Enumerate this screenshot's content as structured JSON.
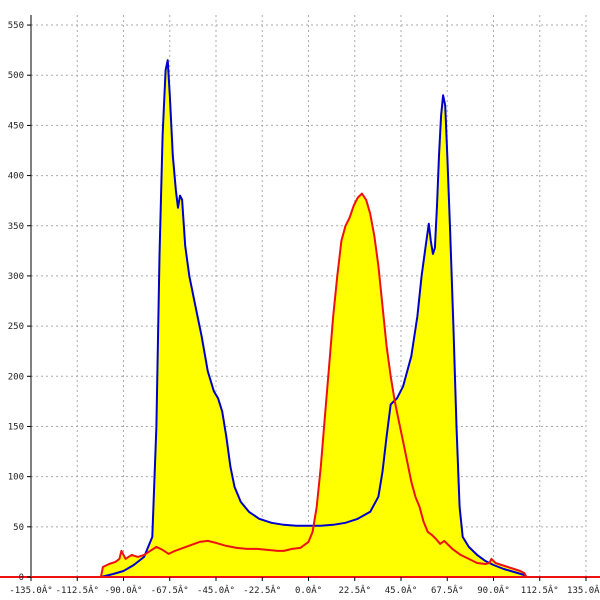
{
  "chart_data": {
    "type": "area",
    "title": "",
    "xlabel": "",
    "ylabel": "",
    "xlim": [
      -135,
      135
    ],
    "ylim": [
      0,
      560
    ],
    "grid": true,
    "x_ticks": [
      -135,
      -112.5,
      -90,
      -67.5,
      -45,
      -22.5,
      0,
      22.5,
      45,
      67.5,
      90,
      112.5,
      135
    ],
    "x_tick_labels": [
      "-135.0Â°",
      "-112.5Â°",
      "-90.0Â°",
      "-67.5Â°",
      "-45.0Â°",
      "-22.5Â°",
      "0.0Â°",
      "22.5Â°",
      "45.0Â°",
      "67.5Â°",
      "90.0Â°",
      "112.5Â°",
      "135.0Â°"
    ],
    "y_ticks": [
      0,
      50,
      100,
      150,
      200,
      250,
      300,
      350,
      400,
      450,
      500,
      550
    ],
    "y_tick_labels": [
      "0",
      "50",
      "100",
      "150",
      "200",
      "250",
      "300",
      "350",
      "400",
      "450",
      "500",
      "550"
    ],
    "colors": {
      "fill": "#ffff00",
      "series_a": "#0000cc",
      "series_b": "#ee1111",
      "axis": "#000000",
      "grid": "#aaaaaa"
    },
    "series": [
      {
        "color": "#0000cc",
        "points": [
          [
            -101,
            0
          ],
          [
            -95,
            3
          ],
          [
            -90,
            6
          ],
          [
            -85,
            12
          ],
          [
            -80,
            20
          ],
          [
            -76,
            40
          ],
          [
            -74,
            150
          ],
          [
            -72.5,
            320
          ],
          [
            -71,
            440
          ],
          [
            -69.5,
            505
          ],
          [
            -68.5,
            515
          ],
          [
            -67.5,
            480
          ],
          [
            -66,
            420
          ],
          [
            -64.5,
            385
          ],
          [
            -63.5,
            368
          ],
          [
            -62.5,
            380
          ],
          [
            -61.5,
            376
          ],
          [
            -60,
            330
          ],
          [
            -58,
            300
          ],
          [
            -55,
            270
          ],
          [
            -52,
            240
          ],
          [
            -49,
            205
          ],
          [
            -46,
            185
          ],
          [
            -44,
            178
          ],
          [
            -42,
            165
          ],
          [
            -40,
            140
          ],
          [
            -38,
            110
          ],
          [
            -36,
            90
          ],
          [
            -33,
            75
          ],
          [
            -29,
            65
          ],
          [
            -24,
            58
          ],
          [
            -18,
            54
          ],
          [
            -12,
            52
          ],
          [
            -6,
            51
          ],
          [
            0,
            51
          ],
          [
            6,
            51
          ],
          [
            12,
            52
          ],
          [
            18,
            54
          ],
          [
            24,
            58
          ],
          [
            30,
            65
          ],
          [
            34,
            80
          ],
          [
            36,
            105
          ],
          [
            38,
            140
          ],
          [
            40,
            172
          ],
          [
            43,
            178
          ],
          [
            46,
            190
          ],
          [
            50,
            220
          ],
          [
            53,
            260
          ],
          [
            55,
            300
          ],
          [
            57,
            330
          ],
          [
            58.5,
            352
          ],
          [
            59.5,
            335
          ],
          [
            60.5,
            322
          ],
          [
            61.5,
            328
          ],
          [
            62.5,
            370
          ],
          [
            63.5,
            420
          ],
          [
            64.5,
            460
          ],
          [
            65.5,
            480
          ],
          [
            66.5,
            470
          ],
          [
            67.5,
            420
          ],
          [
            69,
            340
          ],
          [
            70.5,
            250
          ],
          [
            72,
            150
          ],
          [
            73.5,
            70
          ],
          [
            75,
            40
          ],
          [
            78,
            30
          ],
          [
            82,
            22
          ],
          [
            86,
            16
          ],
          [
            90,
            12
          ],
          [
            95,
            8
          ],
          [
            100,
            5
          ],
          [
            105,
            2
          ],
          [
            106,
            0
          ]
        ]
      },
      {
        "color": "#ee1111",
        "points": [
          [
            -101,
            0
          ],
          [
            -100,
            10
          ],
          [
            -97,
            13
          ],
          [
            -94,
            15
          ],
          [
            -92,
            18
          ],
          [
            -91,
            26
          ],
          [
            -89,
            18
          ],
          [
            -86,
            22
          ],
          [
            -83,
            20
          ],
          [
            -80,
            22
          ],
          [
            -77,
            26
          ],
          [
            -74,
            30
          ],
          [
            -71,
            27
          ],
          [
            -68,
            23
          ],
          [
            -65,
            26
          ],
          [
            -61,
            29
          ],
          [
            -57,
            32
          ],
          [
            -53,
            35
          ],
          [
            -49,
            36
          ],
          [
            -45,
            34
          ],
          [
            -40,
            31
          ],
          [
            -35,
            29
          ],
          [
            -30,
            28
          ],
          [
            -25,
            28
          ],
          [
            -20,
            27
          ],
          [
            -15,
            26
          ],
          [
            -12,
            26
          ],
          [
            -8,
            28
          ],
          [
            -4,
            29
          ],
          [
            -2,
            32
          ],
          [
            0,
            35
          ],
          [
            2,
            45
          ],
          [
            4,
            70
          ],
          [
            6,
            110
          ],
          [
            8,
            160
          ],
          [
            10,
            210
          ],
          [
            12,
            260
          ],
          [
            14,
            300
          ],
          [
            16,
            335
          ],
          [
            18,
            350
          ],
          [
            20,
            358
          ],
          [
            22,
            370
          ],
          [
            24,
            378
          ],
          [
            26,
            382
          ],
          [
            28,
            376
          ],
          [
            30,
            362
          ],
          [
            32,
            340
          ],
          [
            34,
            310
          ],
          [
            36,
            270
          ],
          [
            38,
            230
          ],
          [
            40,
            200
          ],
          [
            42,
            175
          ],
          [
            44,
            155
          ],
          [
            46,
            135
          ],
          [
            48,
            115
          ],
          [
            50,
            95
          ],
          [
            52,
            80
          ],
          [
            54,
            70
          ],
          [
            56,
            55
          ],
          [
            58,
            45
          ],
          [
            60,
            42
          ],
          [
            62,
            38
          ],
          [
            64,
            33
          ],
          [
            66,
            36
          ],
          [
            68,
            32
          ],
          [
            70,
            28
          ],
          [
            74,
            22
          ],
          [
            78,
            18
          ],
          [
            82,
            14
          ],
          [
            86,
            13
          ],
          [
            88,
            14
          ],
          [
            89,
            18
          ],
          [
            91,
            14
          ],
          [
            94,
            12
          ],
          [
            97,
            10
          ],
          [
            100,
            8
          ],
          [
            103,
            6
          ],
          [
            105,
            4
          ],
          [
            106,
            0
          ]
        ]
      }
    ]
  }
}
